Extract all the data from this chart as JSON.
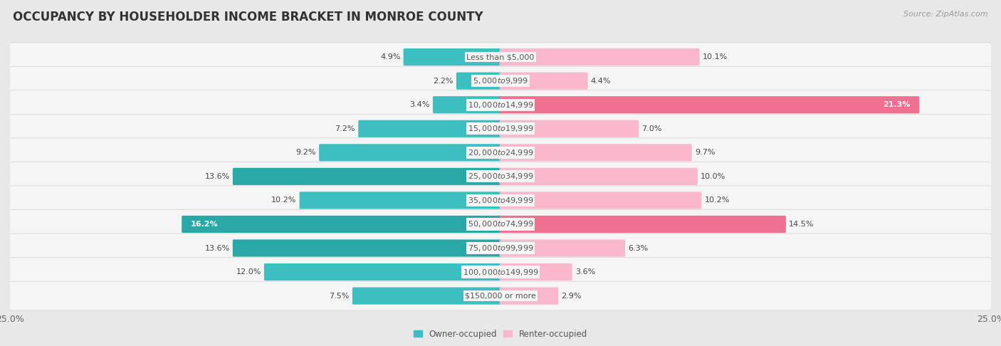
{
  "title": "OCCUPANCY BY HOUSEHOLDER INCOME BRACKET IN MONROE COUNTY",
  "source": "Source: ZipAtlas.com",
  "categories": [
    "Less than $5,000",
    "$5,000 to $9,999",
    "$10,000 to $14,999",
    "$15,000 to $19,999",
    "$20,000 to $24,999",
    "$25,000 to $34,999",
    "$35,000 to $49,999",
    "$50,000 to $74,999",
    "$75,000 to $99,999",
    "$100,000 to $149,999",
    "$150,000 or more"
  ],
  "owner_values": [
    4.9,
    2.2,
    3.4,
    7.2,
    9.2,
    13.6,
    10.2,
    16.2,
    13.6,
    12.0,
    7.5
  ],
  "renter_values": [
    10.1,
    4.4,
    21.3,
    7.0,
    9.7,
    10.0,
    10.2,
    14.5,
    6.3,
    3.6,
    2.9
  ],
  "owner_color": "#3dbfbf",
  "owner_color_dark": "#2aa8a8",
  "renter_color_light": "#f9b8cc",
  "renter_color_dark": "#f07090",
  "owner_label": "Owner-occupied",
  "renter_label": "Renter-occupied",
  "background_color": "#e8e8e8",
  "row_bg_color": "#f5f5f5",
  "xlim": 25.0,
  "bar_height": 0.62,
  "title_fontsize": 12,
  "label_fontsize": 8.5,
  "value_fontsize": 8.0,
  "tick_fontsize": 9,
  "source_fontsize": 8
}
